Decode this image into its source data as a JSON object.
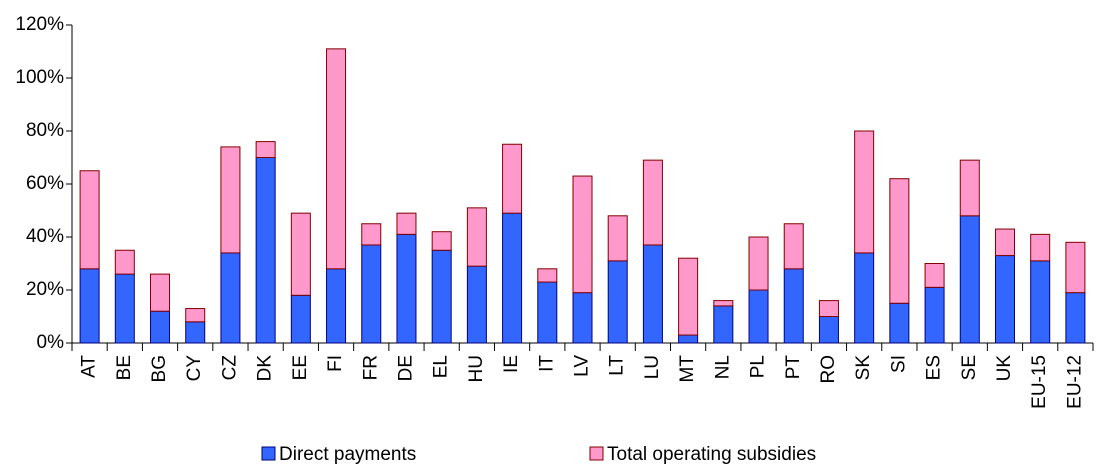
{
  "chart_data": {
    "type": "stacked_bar",
    "categories": [
      "AT",
      "BE",
      "BG",
      "CY",
      "CZ",
      "DK",
      "EE",
      "FI",
      "FR",
      "DE",
      "EL",
      "HU",
      "IE",
      "IT",
      "LV",
      "LT",
      "LU",
      "MT",
      "NL",
      "PL",
      "PT",
      "RO",
      "SK",
      "SI",
      "ES",
      "SE",
      "UK",
      "EU-15",
      "EU-12"
    ],
    "series": [
      {
        "name": "Direct payments",
        "color": "#3366ff",
        "stroke": "#000080",
        "values": [
          28,
          26,
          12,
          8,
          34,
          70,
          18,
          28,
          37,
          41,
          35,
          29,
          49,
          23,
          19,
          31,
          37,
          3,
          14,
          20,
          28,
          10,
          34,
          15,
          21,
          48,
          33,
          31,
          19
        ]
      },
      {
        "name": "Total operating subsidies",
        "color": "#ff99cc",
        "stroke": "#800000",
        "values": [
          37,
          9,
          14,
          5,
          40,
          6,
          31,
          83,
          8,
          8,
          7,
          22,
          26,
          5,
          44,
          17,
          32,
          29,
          2,
          20,
          17,
          6,
          46,
          47,
          9,
          21,
          10,
          10,
          19
        ]
      }
    ],
    "ylim": [
      0,
      120
    ],
    "yticks": [
      {
        "value": 0,
        "label": "0%"
      },
      {
        "value": 20,
        "label": "20%"
      },
      {
        "value": 40,
        "label": "40%"
      },
      {
        "value": 60,
        "label": "60%"
      },
      {
        "value": 80,
        "label": "80%"
      },
      {
        "value": 100,
        "label": "100%"
      },
      {
        "value": 120,
        "label": "120%"
      }
    ],
    "grid": false
  }
}
